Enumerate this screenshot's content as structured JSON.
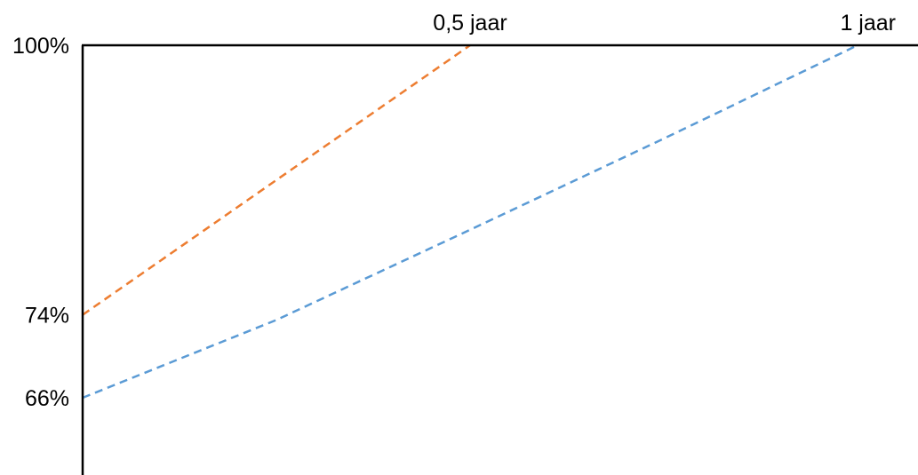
{
  "chart_data": {
    "type": "line",
    "title": "",
    "xlabel": "",
    "ylabel": "",
    "x_tick_labels": [
      {
        "x": 0.5,
        "label": "0,5 jaar"
      },
      {
        "x": 1.0,
        "label": "1 jaar"
      }
    ],
    "y_tick_labels": [
      {
        "y": 100,
        "label": "100%"
      },
      {
        "y": 74,
        "label": "74%"
      },
      {
        "y": 66,
        "label": "66%"
      }
    ],
    "xlim": [
      0,
      1.0
    ],
    "ylim": [
      59,
      100
    ],
    "grid": false,
    "series": [
      {
        "color": "#ED7D31",
        "line_style": "dashed",
        "points": [
          [
            0,
            74
          ],
          [
            0.5,
            100
          ]
        ]
      },
      {
        "color": "#5B9BD5",
        "line_style": "dashed",
        "points": [
          [
            0,
            66
          ],
          [
            0.25,
            73.5
          ],
          [
            0.5,
            82.2
          ],
          [
            0.75,
            91
          ],
          [
            1.0,
            100
          ]
        ]
      }
    ]
  }
}
